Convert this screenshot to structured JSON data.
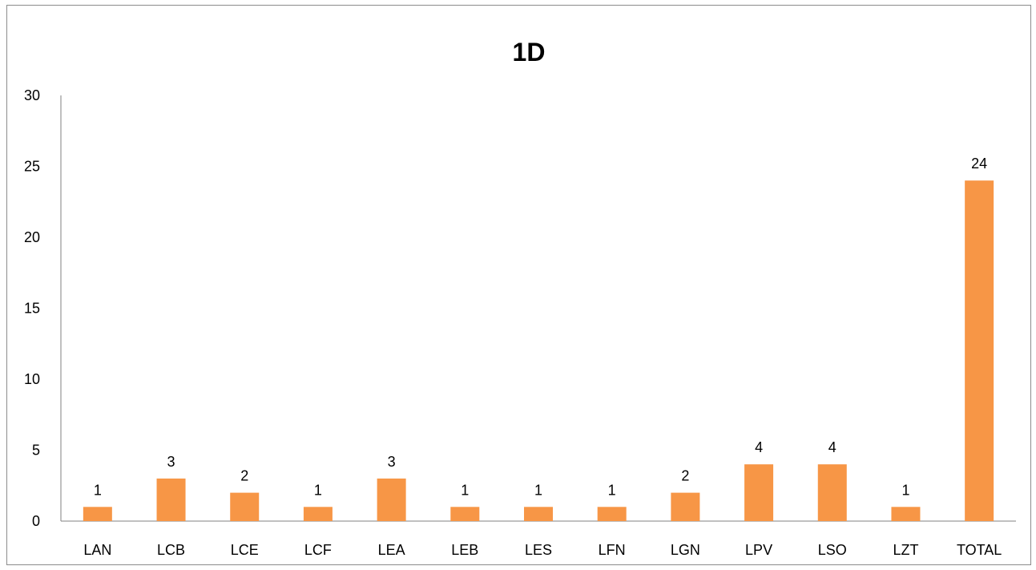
{
  "chart_data": {
    "type": "bar",
    "title": "1D",
    "xlabel": "",
    "ylabel": "",
    "categories": [
      "LAN",
      "LCB",
      "LCE",
      "LCF",
      "LEA",
      "LEB",
      "LES",
      "LFN",
      "LGN",
      "LPV",
      "LSO",
      "LZT",
      "TOTAL"
    ],
    "values": [
      1,
      3,
      2,
      1,
      3,
      1,
      1,
      1,
      2,
      4,
      4,
      1,
      24
    ],
    "ylim": [
      0,
      30
    ],
    "yticks": [
      0,
      5,
      10,
      15,
      20,
      25,
      30
    ],
    "grid": false,
    "legend": "none",
    "bar_color": "#F79646",
    "data_labels": true
  }
}
